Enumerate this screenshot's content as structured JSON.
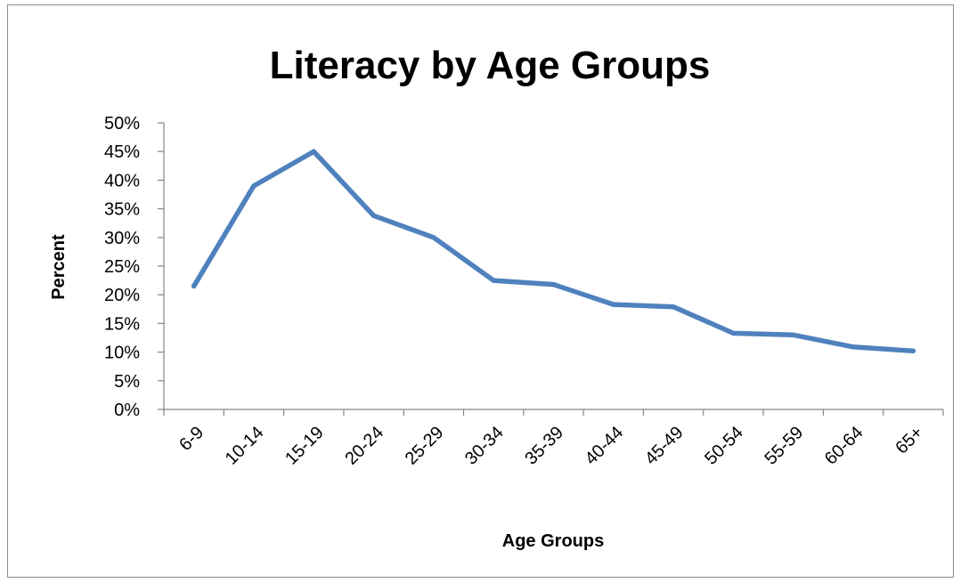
{
  "chart_data": {
    "type": "line",
    "title": "Literacy by Age Groups",
    "xlabel": "Age Groups",
    "ylabel": "Percent",
    "categories": [
      "6-9",
      "10-14",
      "15-19",
      "20-24",
      "25-29",
      "30-34",
      "35-39",
      "40-44",
      "45-49",
      "50-54",
      "55-59",
      "60-64",
      "65+"
    ],
    "series": [
      {
        "values": [
          21.5,
          39.0,
          45.0,
          33.8,
          30.0,
          22.5,
          21.8,
          18.3,
          17.9,
          13.3,
          13.0,
          10.9,
          10.2
        ],
        "color": "#4f81bd"
      }
    ],
    "ylim": [
      0,
      50
    ],
    "yticks": [
      "0%",
      "5%",
      "10%",
      "15%",
      "20%",
      "25%",
      "30%",
      "35%",
      "40%",
      "45%",
      "50%"
    ],
    "grid": false,
    "legend": "none"
  }
}
